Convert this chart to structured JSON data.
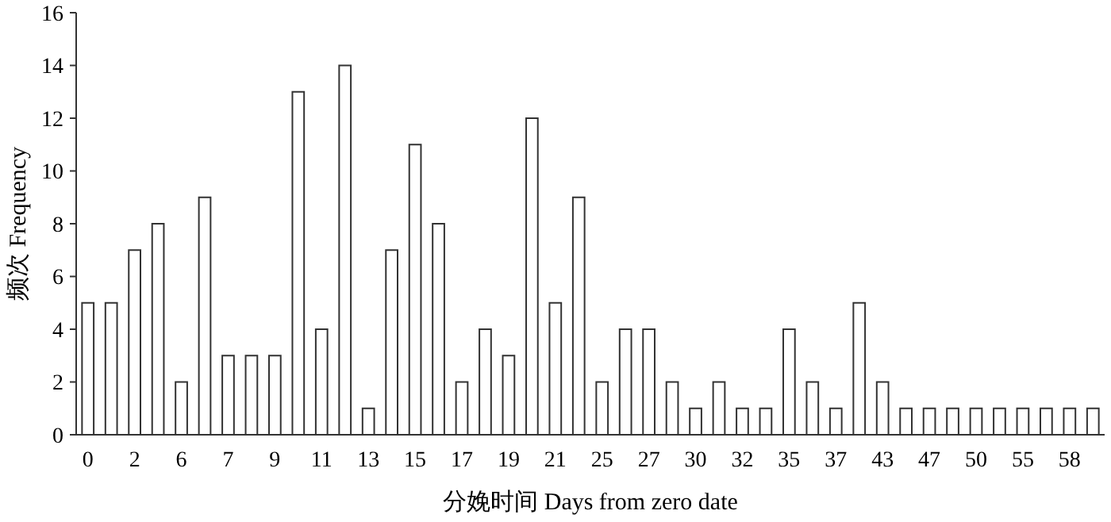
{
  "chart_data": {
    "type": "bar",
    "xlabel": "分娩时间 Days from zero date",
    "ylabel": "频次 Frequency",
    "categories": [
      "0",
      null,
      "2",
      null,
      "6",
      null,
      "7",
      null,
      "9",
      null,
      "11",
      null,
      "13",
      null,
      "15",
      null,
      "17",
      null,
      "19",
      null,
      "21",
      null,
      "25",
      null,
      "27",
      null,
      "30",
      null,
      "32",
      null,
      "35",
      null,
      "37",
      null,
      "43",
      null,
      "47",
      null,
      "50",
      null,
      "55",
      null,
      "58",
      null
    ],
    "values": [
      5,
      5,
      7,
      8,
      2,
      9,
      3,
      3,
      3,
      13,
      4,
      14,
      1,
      7,
      11,
      8,
      2,
      4,
      3,
      12,
      5,
      9,
      2,
      4,
      4,
      2,
      1,
      2,
      1,
      1,
      4,
      2,
      1,
      5,
      2,
      1,
      1,
      1,
      1,
      1,
      1,
      1,
      1,
      1
    ],
    "color": "#ffffff",
    "ylim": [
      0,
      16
    ],
    "yticks": [
      0,
      2,
      4,
      6,
      8,
      10,
      12,
      14,
      16
    ],
    "grid": false
  }
}
